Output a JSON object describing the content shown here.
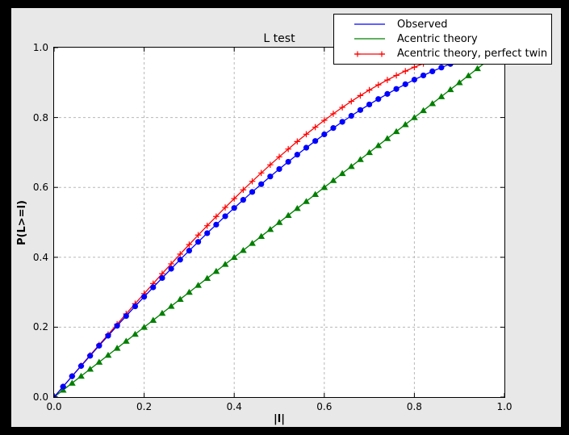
{
  "window": {
    "outer_bg": "#000000",
    "figure_bg": "#e8e8e8",
    "axes_bg": "#ffffff",
    "frame_color": "#000000",
    "grid_color": "#b8b8b8"
  },
  "chart_data": {
    "type": "line",
    "title": "L test",
    "xlabel": "|l|",
    "ylabel": "P(L>=l)",
    "xlim": [
      0.0,
      1.0
    ],
    "ylim": [
      0.0,
      1.0
    ],
    "xtick_labels": [
      "0.0",
      "0.2",
      "0.4",
      "0.6",
      "0.8",
      "1.0"
    ],
    "ytick_labels": [
      "0.0",
      "0.2",
      "0.4",
      "0.6",
      "0.8",
      "1.0"
    ],
    "grid": {
      "shown": true,
      "style": "dashed",
      "positions": [
        0.2,
        0.4,
        0.6,
        0.8
      ]
    },
    "legend": {
      "position": "upper right",
      "border": true
    },
    "x": [
      0.0,
      0.02,
      0.04,
      0.06,
      0.08,
      0.1,
      0.12,
      0.14,
      0.16,
      0.18,
      0.2,
      0.22,
      0.24,
      0.26,
      0.28,
      0.3,
      0.32,
      0.34,
      0.36,
      0.38,
      0.4,
      0.42,
      0.44,
      0.46,
      0.48,
      0.5,
      0.52,
      0.54,
      0.56,
      0.58,
      0.6,
      0.62,
      0.64,
      0.66,
      0.68,
      0.7,
      0.72,
      0.74,
      0.76,
      0.78,
      0.8,
      0.82,
      0.84,
      0.86,
      0.88,
      0.9,
      0.92,
      0.94,
      0.96,
      0.98,
      1.0
    ],
    "series": [
      {
        "name": "Observed",
        "color": "#0000ff",
        "marker": "circle",
        "line": "solid",
        "y": [
          0.0,
          0.0299,
          0.0596,
          0.0889,
          0.1181,
          0.147,
          0.1756,
          0.2039,
          0.232,
          0.2597,
          0.287,
          0.3141,
          0.3408,
          0.3672,
          0.3932,
          0.4189,
          0.4441,
          0.469,
          0.4935,
          0.5175,
          0.5411,
          0.5643,
          0.587,
          0.6093,
          0.6312,
          0.6525,
          0.6734,
          0.6937,
          0.7136,
          0.7328,
          0.7517,
          0.7699,
          0.7876,
          0.8048,
          0.8214,
          0.8373,
          0.8528,
          0.8675,
          0.8817,
          0.8952,
          0.9082,
          0.9204,
          0.9321,
          0.943,
          0.9533,
          0.9628,
          0.9717,
          0.9799,
          0.9873,
          0.994,
          1.0
        ]
      },
      {
        "name": "Acentric theory",
        "color": "#007f00",
        "marker": "triangle_up",
        "line": "solid",
        "y": [
          0.0,
          0.02,
          0.04,
          0.06,
          0.08,
          0.1,
          0.12,
          0.14,
          0.16,
          0.18,
          0.2,
          0.22,
          0.24,
          0.26,
          0.28,
          0.3,
          0.32,
          0.34,
          0.36,
          0.38,
          0.4,
          0.42,
          0.44,
          0.46,
          0.48,
          0.5,
          0.52,
          0.54,
          0.56,
          0.58,
          0.6,
          0.62,
          0.64,
          0.66,
          0.68,
          0.7,
          0.72,
          0.74,
          0.76,
          0.78,
          0.8,
          0.82,
          0.84,
          0.86,
          0.88,
          0.9,
          0.92,
          0.94,
          0.96,
          0.98,
          1.0
        ]
      },
      {
        "name": "Acentric theory, perfect twin",
        "color": "#ff0000",
        "marker": "plus",
        "line": "solid",
        "y": [
          0.0,
          0.03,
          0.06,
          0.0899,
          0.1197,
          0.1495,
          0.1791,
          0.2086,
          0.238,
          0.2671,
          0.296,
          0.3247,
          0.3531,
          0.3812,
          0.409,
          0.4365,
          0.4636,
          0.4903,
          0.5167,
          0.5426,
          0.568,
          0.593,
          0.6174,
          0.6413,
          0.6647,
          0.6875,
          0.7097,
          0.7313,
          0.7522,
          0.7724,
          0.792,
          0.8108,
          0.8289,
          0.8463,
          0.8628,
          0.8785,
          0.8934,
          0.9074,
          0.9205,
          0.9327,
          0.944,
          0.9543,
          0.9637,
          0.972,
          0.9793,
          0.9855,
          0.9907,
          0.9947,
          0.9976,
          0.9994,
          1.0
        ]
      }
    ]
  }
}
